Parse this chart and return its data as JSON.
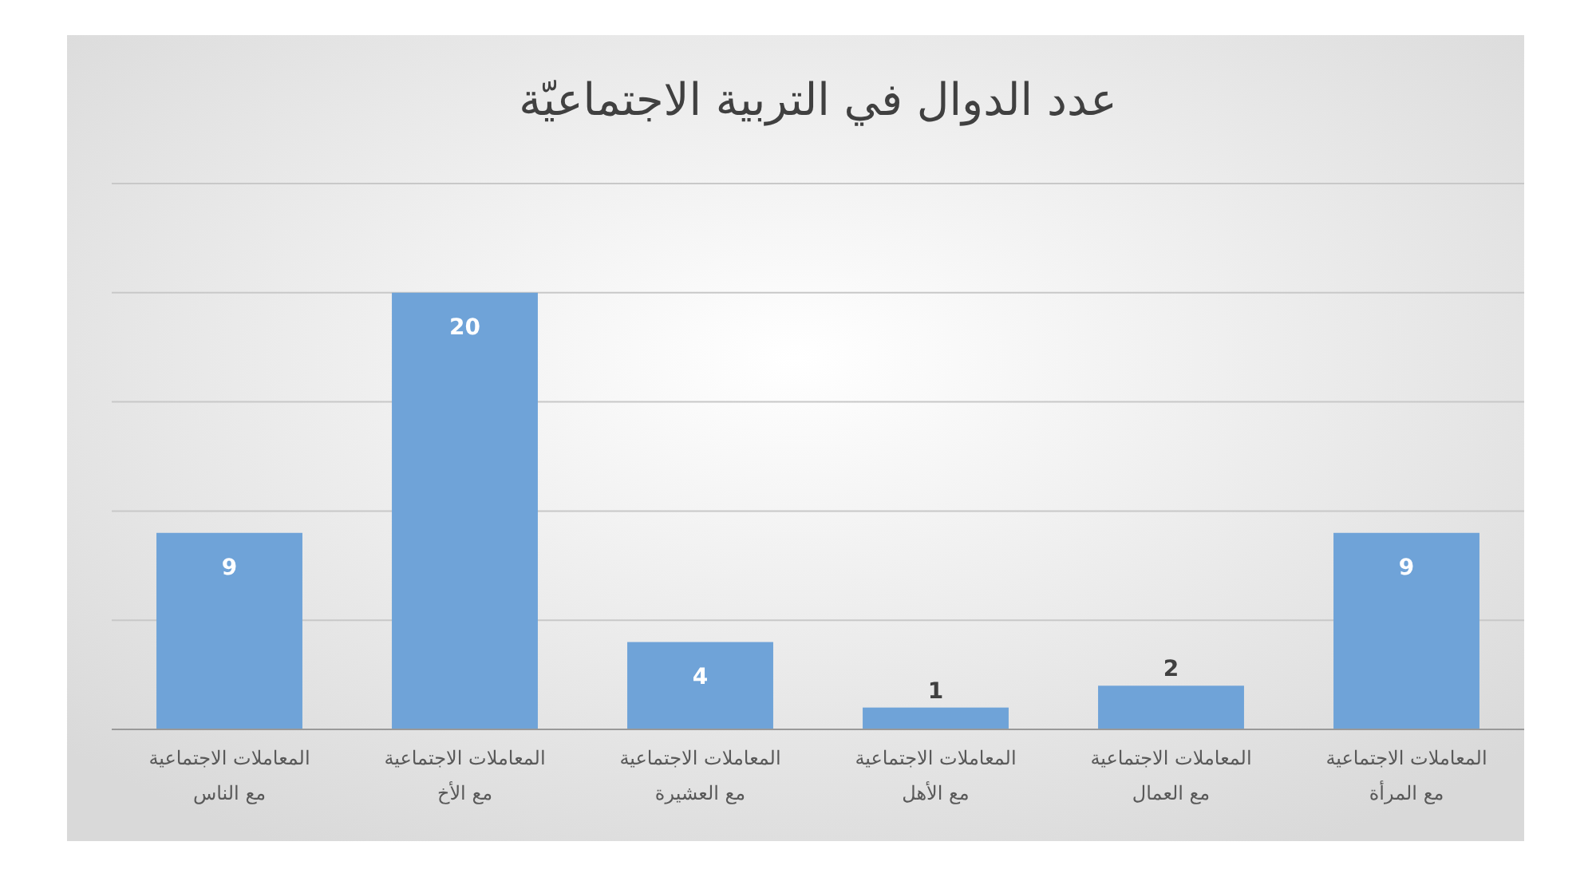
{
  "chart_data": {
    "type": "bar",
    "title": "عدد الدوال في التربية الاجتماعيّة",
    "categories": [
      "المعاملات الاجتماعية مع الناس",
      "المعاملات الاجتماعية مع الأخ",
      "المعاملات الاجتماعية مع العشيرة",
      "المعاملات الاجتماعية مع الأهل",
      "المعاملات الاجتماعية مع العمال",
      "المعاملات الاجتماعية مع المرأة"
    ],
    "values": [
      9,
      20,
      4,
      1,
      2,
      9
    ],
    "color": "#6fa3d8",
    "ylim": [
      0,
      25
    ],
    "yticks": [
      {
        "value": 0,
        "label": null
      },
      {
        "value": 5,
        "label": null
      },
      {
        "value": 10,
        "label": null
      },
      {
        "value": 15,
        "label": null
      },
      {
        "value": 20,
        "label": null
      },
      {
        "value": 25,
        "label": null
      }
    ],
    "grid": "y",
    "data_labels": true
  }
}
